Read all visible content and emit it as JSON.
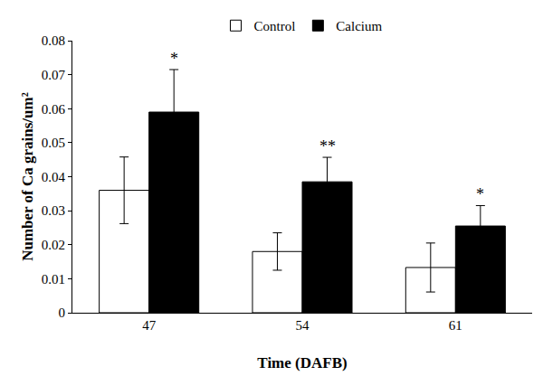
{
  "chart_data": {
    "type": "bar",
    "xlabel": "Time (DAFB)",
    "ylabel": "Number of Ca grains/um²",
    "categories": [
      "47",
      "54",
      "61"
    ],
    "series": [
      {
        "name": "Control",
        "color": "#ffffff",
        "values": [
          0.036,
          0.018,
          0.0133
        ],
        "errors": [
          0.0098,
          0.0055,
          0.0072
        ]
      },
      {
        "name": "Calcium",
        "color": "#000000",
        "values": [
          0.059,
          0.0385,
          0.0255
        ],
        "errors": [
          0.0125,
          0.0072,
          0.006
        ]
      }
    ],
    "annotations": [
      {
        "category": "47",
        "series": "Calcium",
        "text": "*"
      },
      {
        "category": "54",
        "series": "Calcium",
        "text": "**"
      },
      {
        "category": "61",
        "series": "Calcium",
        "text": "*"
      }
    ],
    "ylim": [
      0,
      0.08
    ],
    "yticks": [
      0,
      0.01,
      0.02,
      0.03,
      0.04,
      0.05,
      0.06,
      0.07,
      0.08
    ],
    "grid": false,
    "legend": "top"
  }
}
